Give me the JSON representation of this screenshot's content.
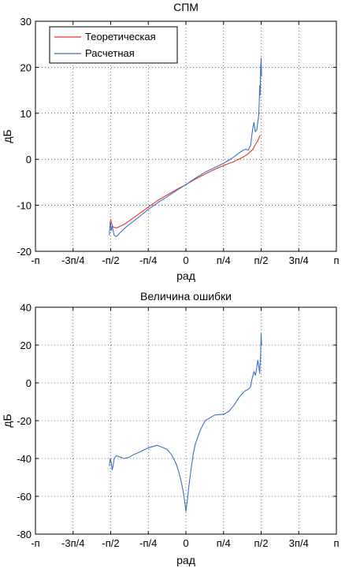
{
  "chart_data": [
    {
      "type": "line",
      "title": "СПМ",
      "xlabel": "рад",
      "ylabel": "дБ",
      "xlim": [
        -3.14159,
        3.14159
      ],
      "ylim": [
        -20,
        30
      ],
      "xticks": [
        -3.14159,
        -2.35619,
        -1.5708,
        -0.7854,
        0,
        0.7854,
        1.5708,
        2.35619,
        3.14159
      ],
      "xticklabels": [
        "-п",
        "-3п/4",
        "-п/2",
        "-п/4",
        "0",
        "п/4",
        "п/2",
        "3п/4",
        "п"
      ],
      "yticks": [
        -20,
        -10,
        0,
        10,
        20,
        30
      ],
      "yticklabels": [
        "-20",
        "-10",
        "0",
        "10",
        "20",
        "30"
      ],
      "grid": true,
      "legend_position": "top-left",
      "series": [
        {
          "name": "Теоретическая",
          "color": "#e8322e",
          "x": [
            -1.57,
            -1.55,
            -1.53,
            -1.5,
            -1.45,
            -1.4,
            -1.3,
            -1.2,
            -1.0,
            -0.8,
            -0.6,
            -0.4,
            -0.2,
            0,
            0.2,
            0.4,
            0.6,
            0.8,
            1.0,
            1.2,
            1.3,
            1.4,
            1.45,
            1.5,
            1.53,
            1.55
          ],
          "y": [
            -13.0,
            -14.0,
            -14.6,
            -14.8,
            -14.9,
            -14.7,
            -14.2,
            -13.5,
            -12.0,
            -10.5,
            -9.0,
            -7.8,
            -6.6,
            -5.5,
            -4.3,
            -3.2,
            -2.2,
            -1.3,
            -0.5,
            0.5,
            1.2,
            2.2,
            3.2,
            4.0,
            4.8,
            5.2
          ]
        },
        {
          "name": "Расчетная",
          "color": "#3b6fc4",
          "x": [
            -1.6,
            -1.58,
            -1.56,
            -1.54,
            -1.52,
            -1.5,
            -1.46,
            -1.42,
            -1.38,
            -1.3,
            -1.2,
            -1.0,
            -0.8,
            -0.6,
            -0.4,
            -0.2,
            0,
            0.2,
            0.4,
            0.6,
            0.8,
            1.0,
            1.1,
            1.2,
            1.25,
            1.3,
            1.35,
            1.38,
            1.4,
            1.42,
            1.45,
            1.48,
            1.5,
            1.52,
            1.53,
            1.54,
            1.55,
            1.56,
            1.57,
            1.58
          ],
          "y": [
            -16.5,
            -13.5,
            -15.5,
            -14.5,
            -15.5,
            -16.5,
            -16.8,
            -16.5,
            -16.0,
            -15.2,
            -14.3,
            -12.7,
            -11.0,
            -9.5,
            -8.2,
            -6.8,
            -5.5,
            -4.1,
            -2.8,
            -1.8,
            -0.8,
            0.5,
            1.3,
            2.0,
            2.2,
            2.0,
            3.0,
            5.5,
            7.0,
            8.0,
            6.0,
            6.5,
            8.0,
            9.5,
            12.0,
            16.0,
            14.0,
            20.0,
            22.0,
            18.0
          ]
        }
      ]
    },
    {
      "type": "line",
      "title": "Величина ошибки",
      "xlabel": "рад",
      "ylabel": "дБ",
      "xlim": [
        -3.14159,
        3.14159
      ],
      "ylim": [
        -80,
        40
      ],
      "xticks": [
        -3.14159,
        -2.35619,
        -1.5708,
        -0.7854,
        0,
        0.7854,
        1.5708,
        2.35619,
        3.14159
      ],
      "xticklabels": [
        "-п",
        "-3п/4",
        "-п/2",
        "-п/4",
        "0",
        "п/4",
        "п/2",
        "3п/4",
        "п"
      ],
      "yticks": [
        -80,
        -60,
        -40,
        -20,
        0,
        20,
        40
      ],
      "yticklabels": [
        "-80",
        "-60",
        "-40",
        "-20",
        "0",
        "20",
        "40"
      ],
      "grid": true,
      "series": [
        {
          "color": "#3b6fc4",
          "x": [
            -1.6,
            -1.58,
            -1.56,
            -1.54,
            -1.52,
            -1.5,
            -1.45,
            -1.4,
            -1.3,
            -1.2,
            -1.1,
            -1.0,
            -0.8,
            -0.6,
            -0.4,
            -0.3,
            -0.2,
            -0.15,
            -0.1,
            -0.06,
            -0.03,
            0,
            0.03,
            0.06,
            0.1,
            0.15,
            0.2,
            0.3,
            0.4,
            0.6,
            0.8,
            0.9,
            1.0,
            1.1,
            1.2,
            1.25,
            1.3,
            1.35,
            1.38,
            1.42,
            1.45,
            1.48,
            1.5,
            1.52,
            1.54,
            1.56,
            1.57,
            1.58
          ],
          "y": [
            -44.0,
            -40.0,
            -42.0,
            -46.0,
            -44.0,
            -40.0,
            -38.5,
            -39.0,
            -40.0,
            -39.5,
            -38.0,
            -37.0,
            -34.5,
            -33.0,
            -35.0,
            -38.0,
            -43.0,
            -47.0,
            -52.0,
            -57.0,
            -62.0,
            -68.0,
            -62.0,
            -55.0,
            -47.0,
            -38.0,
            -32.0,
            -25.0,
            -20.0,
            -17.0,
            -16.5,
            -15.0,
            -12.0,
            -8.0,
            -5.0,
            -4.0,
            -3.5,
            -2.0,
            2.0,
            6.0,
            4.0,
            8.0,
            12.0,
            9.0,
            5.0,
            15.0,
            26.0,
            20.0
          ]
        }
      ]
    }
  ]
}
